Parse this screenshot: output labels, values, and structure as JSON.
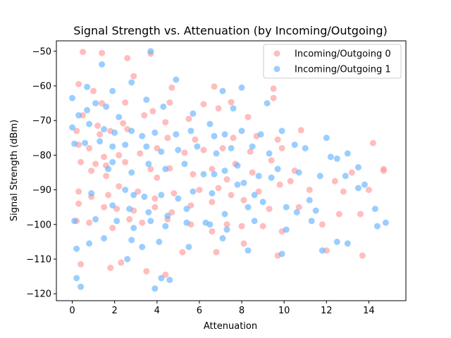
{
  "chart_data": {
    "type": "scatter",
    "title": "Signal Strength vs. Attenuation (by Incoming/Outgoing)",
    "xlabel": "Attenuation",
    "ylabel": "Signal Strength (dBm)",
    "xlim": [
      -0.75,
      15.75
    ],
    "ylim": [
      -122,
      -47
    ],
    "xticks": [
      0,
      2,
      4,
      6,
      8,
      10,
      12,
      14
    ],
    "yticks": [
      -50,
      -60,
      -70,
      -80,
      -90,
      -100,
      -110,
      -120
    ],
    "grid": false,
    "legend_position": "top-right",
    "marker_opacity": 0.65,
    "series": [
      {
        "name": "Incoming/Outgoing 0",
        "color": "#ff9999",
        "points": [
          [
            0.5,
            -50.2
          ],
          [
            1.4,
            -50.5
          ],
          [
            2.6,
            -52.0
          ],
          [
            3.7,
            -50.7
          ],
          [
            0.3,
            -59.5
          ],
          [
            1.0,
            -61.5
          ],
          [
            2.9,
            -57.2
          ],
          [
            4.7,
            -60.5
          ],
          [
            6.7,
            -60.2
          ],
          [
            9.5,
            -60.8
          ],
          [
            1.4,
            -65.0
          ],
          [
            2.5,
            -64.8
          ],
          [
            3.8,
            -67.3
          ],
          [
            4.6,
            -64.8
          ],
          [
            6.2,
            -65.3
          ],
          [
            7.5,
            -64.7
          ],
          [
            9.5,
            -63.5
          ],
          [
            0.5,
            -68.5
          ],
          [
            1.2,
            -71.5
          ],
          [
            2.4,
            -70.8
          ],
          [
            3.4,
            -68.5
          ],
          [
            4.4,
            -70.5
          ],
          [
            5.5,
            -69.5
          ],
          [
            6.9,
            -66.5
          ],
          [
            8.3,
            -69.0
          ],
          [
            0.2,
            -73.0
          ],
          [
            1.3,
            -74.0
          ],
          [
            1.8,
            -73.0
          ],
          [
            2.6,
            -72.5
          ],
          [
            4.5,
            -75.0
          ],
          [
            5.8,
            -75.5
          ],
          [
            7.6,
            -75.0
          ],
          [
            8.7,
            -74.5
          ],
          [
            9.7,
            -75.5
          ],
          [
            10.8,
            -72.8
          ],
          [
            0.3,
            -77.0
          ],
          [
            0.8,
            -78.0
          ],
          [
            1.5,
            -80.5
          ],
          [
            2.2,
            -80.0
          ],
          [
            3.2,
            -79.5
          ],
          [
            4.0,
            -78.0
          ],
          [
            5.3,
            -79.3
          ],
          [
            6.2,
            -78.5
          ],
          [
            7.1,
            -78.0
          ],
          [
            8.4,
            -79.0
          ],
          [
            9.9,
            -78.0
          ],
          [
            0.4,
            -82.0
          ],
          [
            1.1,
            -82.5
          ],
          [
            1.6,
            -83.0
          ],
          [
            2.5,
            -82.0
          ],
          [
            3.7,
            -84.0
          ],
          [
            4.6,
            -83.8
          ],
          [
            5.7,
            -85.5
          ],
          [
            6.6,
            -84.0
          ],
          [
            7.7,
            -82.5
          ],
          [
            8.5,
            -85.0
          ],
          [
            9.4,
            -81.5
          ],
          [
            10.5,
            -84.5
          ],
          [
            13.2,
            -85.0
          ],
          [
            14.7,
            -84.0
          ],
          [
            0.3,
            -90.5
          ],
          [
            0.9,
            -92.0
          ],
          [
            1.7,
            -91.5
          ],
          [
            2.2,
            -89.0
          ],
          [
            3.1,
            -90.5
          ],
          [
            3.9,
            -92.5
          ],
          [
            4.8,
            -91.0
          ],
          [
            6.0,
            -90.0
          ],
          [
            6.9,
            -89.5
          ],
          [
            7.5,
            -91.5
          ],
          [
            8.8,
            -90.5
          ],
          [
            9.8,
            -88.5
          ],
          [
            11.2,
            -90.0
          ],
          [
            12.8,
            -90.5
          ],
          [
            14.0,
            -90.0
          ],
          [
            0.3,
            -94.0
          ],
          [
            1.5,
            -95.0
          ],
          [
            2.1,
            -95.5
          ],
          [
            2.9,
            -96.0
          ],
          [
            3.9,
            -95.0
          ],
          [
            4.7,
            -96.5
          ],
          [
            5.6,
            -94.5
          ],
          [
            6.6,
            -93.5
          ],
          [
            8.1,
            -93.0
          ],
          [
            9.3,
            -95.5
          ],
          [
            10.7,
            -95.0
          ],
          [
            12.6,
            -97.0
          ],
          [
            13.6,
            -97.0
          ],
          [
            0.2,
            -99.0
          ],
          [
            0.8,
            -99.5
          ],
          [
            1.9,
            -101.0
          ],
          [
            2.7,
            -98.5
          ],
          [
            3.3,
            -99.5
          ],
          [
            4.5,
            -98.5
          ],
          [
            5.6,
            -100.0
          ],
          [
            6.6,
            -102.0
          ],
          [
            7.3,
            -100.0
          ],
          [
            8.0,
            -100.5
          ],
          [
            9.0,
            -100.5
          ],
          [
            9.9,
            -102.0
          ],
          [
            11.8,
            -100.0
          ],
          [
            0.4,
            -111.5
          ],
          [
            1.8,
            -112.5
          ],
          [
            2.3,
            -111.0
          ],
          [
            3.5,
            -113.5
          ],
          [
            4.4,
            -114.5
          ],
          [
            5.2,
            -108.0
          ],
          [
            6.8,
            -108.0
          ],
          [
            8.1,
            -105.5
          ],
          [
            9.7,
            -109.0
          ],
          [
            12.0,
            -107.5
          ],
          [
            13.7,
            -109.0
          ],
          [
            14.2,
            -76.5
          ],
          [
            14.7,
            -84.5
          ],
          [
            0.9,
            -84.5
          ],
          [
            1.6,
            -86.0
          ],
          [
            4.0,
            -86.5
          ],
          [
            7.3,
            -87.0
          ],
          [
            10.3,
            -87.5
          ],
          [
            12.4,
            -87.5
          ]
        ]
      },
      {
        "name": "Incoming/Outgoing 1",
        "color": "#66b3ff",
        "points": [
          [
            3.7,
            -50.0
          ],
          [
            1.4,
            -53.8
          ],
          [
            2.8,
            -59.0
          ],
          [
            0.0,
            -63.5
          ],
          [
            0.7,
            -60.3
          ],
          [
            1.9,
            -61.5
          ],
          [
            4.9,
            -58.2
          ],
          [
            7.1,
            -61.5
          ],
          [
            8.0,
            -60.5
          ],
          [
            0.3,
            -68.5
          ],
          [
            0.7,
            -67.0
          ],
          [
            1.1,
            -65.0
          ],
          [
            1.6,
            -66.0
          ],
          [
            2.2,
            -69.0
          ],
          [
            3.5,
            -64.0
          ],
          [
            4.3,
            -66.0
          ],
          [
            5.7,
            -68.0
          ],
          [
            6.5,
            -71.0
          ],
          [
            7.6,
            -66.5
          ],
          [
            9.2,
            -65.0
          ],
          [
            0.0,
            -72.0
          ],
          [
            0.8,
            -71.0
          ],
          [
            1.5,
            -72.5
          ],
          [
            2.0,
            -73.5
          ],
          [
            2.8,
            -73.0
          ],
          [
            3.3,
            -74.5
          ],
          [
            3.9,
            -73.5
          ],
          [
            4.9,
            -74.0
          ],
          [
            5.6,
            -73.0
          ],
          [
            6.7,
            -74.5
          ],
          [
            7.2,
            -74.0
          ],
          [
            8.0,
            -73.0
          ],
          [
            8.9,
            -74.0
          ],
          [
            9.9,
            -73.0
          ],
          [
            12.0,
            -75.0
          ],
          [
            0.1,
            -76.7
          ],
          [
            0.6,
            -76.5
          ],
          [
            1.3,
            -76.0
          ],
          [
            1.9,
            -77.5
          ],
          [
            2.5,
            -77.0
          ],
          [
            3.5,
            -77.5
          ],
          [
            4.2,
            -79.0
          ],
          [
            5.0,
            -78.5
          ],
          [
            5.9,
            -77.5
          ],
          [
            6.8,
            -79.5
          ],
          [
            7.5,
            -78.0
          ],
          [
            8.5,
            -77.5
          ],
          [
            9.3,
            -79.5
          ],
          [
            10.5,
            -77.0
          ],
          [
            11.0,
            -78.0
          ],
          [
            12.2,
            -80.5
          ],
          [
            13.0,
            -79.5
          ],
          [
            1.9,
            -82.0
          ],
          [
            1.7,
            -84.0
          ],
          [
            2.8,
            -85.0
          ],
          [
            3.6,
            -82.5
          ],
          [
            4.4,
            -84.0
          ],
          [
            5.3,
            -82.5
          ],
          [
            6.2,
            -85.5
          ],
          [
            7.2,
            -84.5
          ],
          [
            7.8,
            -83.0
          ],
          [
            8.8,
            -86.0
          ],
          [
            9.7,
            -84.0
          ],
          [
            10.7,
            -85.0
          ],
          [
            12.5,
            -81.0
          ],
          [
            13.5,
            -83.5
          ],
          [
            0.9,
            -91.0
          ],
          [
            2.5,
            -90.0
          ],
          [
            2.9,
            -91.5
          ],
          [
            3.4,
            -92.0
          ],
          [
            4.2,
            -91.5
          ],
          [
            5.0,
            -92.5
          ],
          [
            5.7,
            -90.5
          ],
          [
            6.6,
            -91.0
          ],
          [
            7.8,
            -88.5
          ],
          [
            8.6,
            -91.5
          ],
          [
            9.0,
            -93.5
          ],
          [
            10.1,
            -95.0
          ],
          [
            11.2,
            -93.0
          ],
          [
            13.5,
            -89.5
          ],
          [
            13.8,
            -88.5
          ],
          [
            1.9,
            -94.5
          ],
          [
            2.7,
            -95.5
          ],
          [
            3.6,
            -96.5
          ],
          [
            4.5,
            -97.5
          ],
          [
            5.4,
            -95.5
          ],
          [
            6.3,
            -99.5
          ],
          [
            7.2,
            -97.0
          ],
          [
            8.3,
            -95.0
          ],
          [
            10.6,
            -96.5
          ],
          [
            11.5,
            -96.0
          ],
          [
            0.1,
            -99.0
          ],
          [
            1.1,
            -98.5
          ],
          [
            2.1,
            -99.0
          ],
          [
            2.9,
            -101.0
          ],
          [
            3.7,
            -99.0
          ],
          [
            4.4,
            -100.5
          ],
          [
            5.4,
            -99.5
          ],
          [
            6.5,
            -100.0
          ],
          [
            7.3,
            -101.5
          ],
          [
            8.6,
            -99.0
          ],
          [
            10.1,
            -101.5
          ],
          [
            11.3,
            -99.0
          ],
          [
            14.4,
            -100.5
          ],
          [
            14.8,
            -99.5
          ],
          [
            0.2,
            -107.0
          ],
          [
            0.8,
            -105.5
          ],
          [
            1.5,
            -104.0
          ],
          [
            2.8,
            -104.5
          ],
          [
            3.3,
            -106.5
          ],
          [
            4.1,
            -105.0
          ],
          [
            5.5,
            -106.5
          ],
          [
            7.1,
            -104.0
          ],
          [
            8.3,
            -107.5
          ],
          [
            9.9,
            -108.5
          ],
          [
            11.8,
            -107.5
          ],
          [
            12.5,
            -105.0
          ],
          [
            13.0,
            -105.5
          ],
          [
            0.2,
            -115.5
          ],
          [
            0.4,
            -118.0
          ],
          [
            2.6,
            -110.0
          ],
          [
            3.9,
            -118.5
          ],
          [
            4.2,
            -115.5
          ],
          [
            4.6,
            -116.0
          ],
          [
            6.7,
            -85.5
          ],
          [
            8.1,
            -88.0
          ],
          [
            9.4,
            -86.5
          ],
          [
            11.7,
            -86.0
          ],
          [
            14.3,
            -95.5
          ],
          [
            12.9,
            -86.0
          ]
        ]
      }
    ]
  }
}
